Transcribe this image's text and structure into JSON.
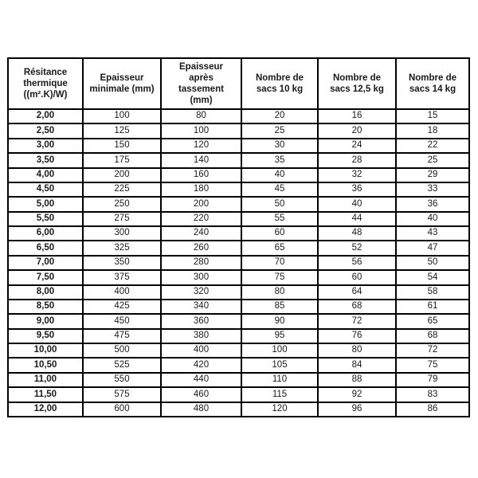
{
  "colors": {
    "background": "#ffffff",
    "border": "#000000",
    "text": "#1a1a1a"
  },
  "table": {
    "headers": [
      "Résitance\nthermique\n((m².K)/W)",
      "Epaisseur\nminimale (mm)",
      "Epaisseur\naprès\ntassement\n(mm)",
      "Nombre de\nsacs 10 kg",
      "Nombre de\nsacs 12,5 kg",
      "Nombre de\nsacs 14 kg"
    ],
    "rows": [
      [
        "2,00",
        "100",
        "80",
        "20",
        "16",
        "15"
      ],
      [
        "2,50",
        "125",
        "100",
        "25",
        "20",
        "18"
      ],
      [
        "3,00",
        "150",
        "120",
        "30",
        "24",
        "22"
      ],
      [
        "3,50",
        "175",
        "140",
        "35",
        "28",
        "25"
      ],
      [
        "4,00",
        "200",
        "160",
        "40",
        "32",
        "29"
      ],
      [
        "4,50",
        "225",
        "180",
        "45",
        "36",
        "33"
      ],
      [
        "5,00",
        "250",
        "200",
        "50",
        "40",
        "36"
      ],
      [
        "5,50",
        "275",
        "220",
        "55",
        "44",
        "40"
      ],
      [
        "6,00",
        "300",
        "240",
        "60",
        "48",
        "43"
      ],
      [
        "6,50",
        "325",
        "260",
        "65",
        "52",
        "47"
      ],
      [
        "7,00",
        "350",
        "280",
        "70",
        "56",
        "50"
      ],
      [
        "7,50",
        "375",
        "300",
        "75",
        "60",
        "54"
      ],
      [
        "8,00",
        "400",
        "320",
        "80",
        "64",
        "58"
      ],
      [
        "8,50",
        "425",
        "340",
        "85",
        "68",
        "61"
      ],
      [
        "9,00",
        "450",
        "360",
        "90",
        "72",
        "65"
      ],
      [
        "9,50",
        "475",
        "380",
        "95",
        "76",
        "68"
      ],
      [
        "10,00",
        "500",
        "400",
        "100",
        "80",
        "72"
      ],
      [
        "10,50",
        "525",
        "420",
        "105",
        "84",
        "75"
      ],
      [
        "11,00",
        "550",
        "440",
        "110",
        "88",
        "79"
      ],
      [
        "11,50",
        "575",
        "460",
        "115",
        "92",
        "83"
      ],
      [
        "12,00",
        "600",
        "480",
        "120",
        "96",
        "86"
      ]
    ]
  }
}
